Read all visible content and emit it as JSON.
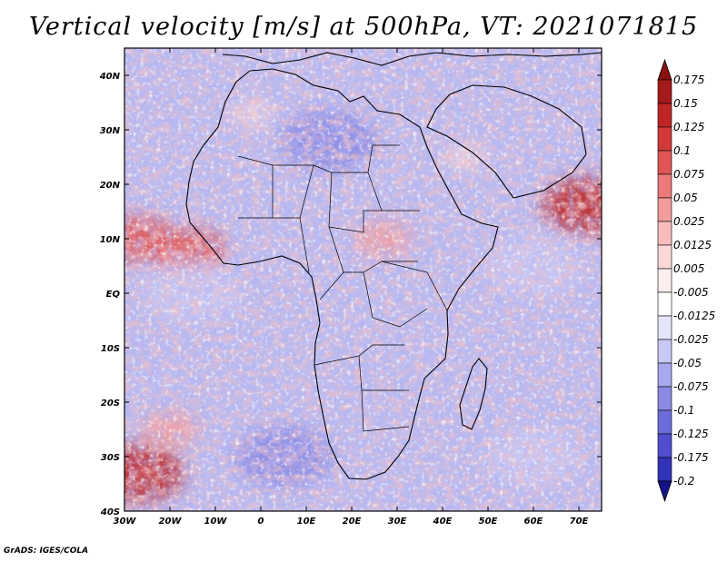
{
  "title": "Vertical velocity [m/s] at 500hPa, VT: 2021071815",
  "credit": "GrADS: IGES/COLA",
  "map": {
    "lon_range": [
      -30,
      75
    ],
    "lat_range": [
      -40,
      45
    ],
    "x_ticks": [
      {
        "lon": -30,
        "label": "30W"
      },
      {
        "lon": -20,
        "label": "20W"
      },
      {
        "lon": -10,
        "label": "10W"
      },
      {
        "lon": 0,
        "label": "0"
      },
      {
        "lon": 10,
        "label": "10E"
      },
      {
        "lon": 20,
        "label": "20E"
      },
      {
        "lon": 30,
        "label": "30E"
      },
      {
        "lon": 40,
        "label": "40E"
      },
      {
        "lon": 50,
        "label": "50E"
      },
      {
        "lon": 60,
        "label": "60E"
      },
      {
        "lon": 70,
        "label": "70E"
      }
    ],
    "y_ticks": [
      {
        "lat": 40,
        "label": "40N"
      },
      {
        "lat": 30,
        "label": "30N"
      },
      {
        "lat": 20,
        "label": "20N"
      },
      {
        "lat": 10,
        "label": "10N"
      },
      {
        "lat": 0,
        "label": "EQ"
      },
      {
        "lat": -10,
        "label": "10S"
      },
      {
        "lat": -20,
        "label": "20S"
      },
      {
        "lat": -30,
        "label": "30S"
      },
      {
        "lat": -40,
        "label": "40S"
      }
    ],
    "hotspots": [
      {
        "lon": -27,
        "lat": 10,
        "value": 0.1
      },
      {
        "lon": -16,
        "lat": 8,
        "value": 0.08
      },
      {
        "lon": 72,
        "lat": 16,
        "value": 0.15
      },
      {
        "lon": -27,
        "lat": -33,
        "value": 0.15
      },
      {
        "lon": 27,
        "lat": 10,
        "value": 0.03
      },
      {
        "lon": 45,
        "lat": 25,
        "value": 0.02
      },
      {
        "lon": -2,
        "lat": 33,
        "value": 0.02
      },
      {
        "lon": -20,
        "lat": -25,
        "value": 0.03
      },
      {
        "lon": 15,
        "lat": 28,
        "value": -0.03
      },
      {
        "lon": -15,
        "lat": 0,
        "value": -0.02
      },
      {
        "lon": 60,
        "lat": 5,
        "value": -0.02
      },
      {
        "lon": 5,
        "lat": -30,
        "value": -0.03
      },
      {
        "lon": 60,
        "lat": -30,
        "value": -0.02
      }
    ]
  },
  "colorbar": {
    "levels": [
      {
        "label": "0.175",
        "color": "#a51a1a"
      },
      {
        "label": "0.15",
        "color": "#be2626"
      },
      {
        "label": "0.125",
        "color": "#d23a3a"
      },
      {
        "label": "0.1",
        "color": "#e05656"
      },
      {
        "label": "0.075",
        "color": "#ec7a7a"
      },
      {
        "label": "0.05",
        "color": "#f39c9c"
      },
      {
        "label": "0.025",
        "color": "#f8bcbc"
      },
      {
        "label": "0.0125",
        "color": "#fbd8d8"
      },
      {
        "label": "0.005",
        "color": "#fdeeee"
      },
      {
        "label": "-0.005",
        "color": "#ffffff"
      },
      {
        "label": "-0.0125",
        "color": "#e6e6fa"
      },
      {
        "label": "-0.025",
        "color": "#c8c8f4"
      },
      {
        "label": "-0.05",
        "color": "#a8a8ec"
      },
      {
        "label": "-0.075",
        "color": "#8a8ae4"
      },
      {
        "label": "-0.1",
        "color": "#6c6cda"
      },
      {
        "label": "-0.125",
        "color": "#4e4ece"
      },
      {
        "label": "-0.175",
        "color": "#3232b8"
      },
      {
        "label": "-0.2",
        "color": "#1e1e9c"
      }
    ],
    "top_arrow_color": "#8b1010",
    "bottom_arrow_color": "#14148a"
  }
}
